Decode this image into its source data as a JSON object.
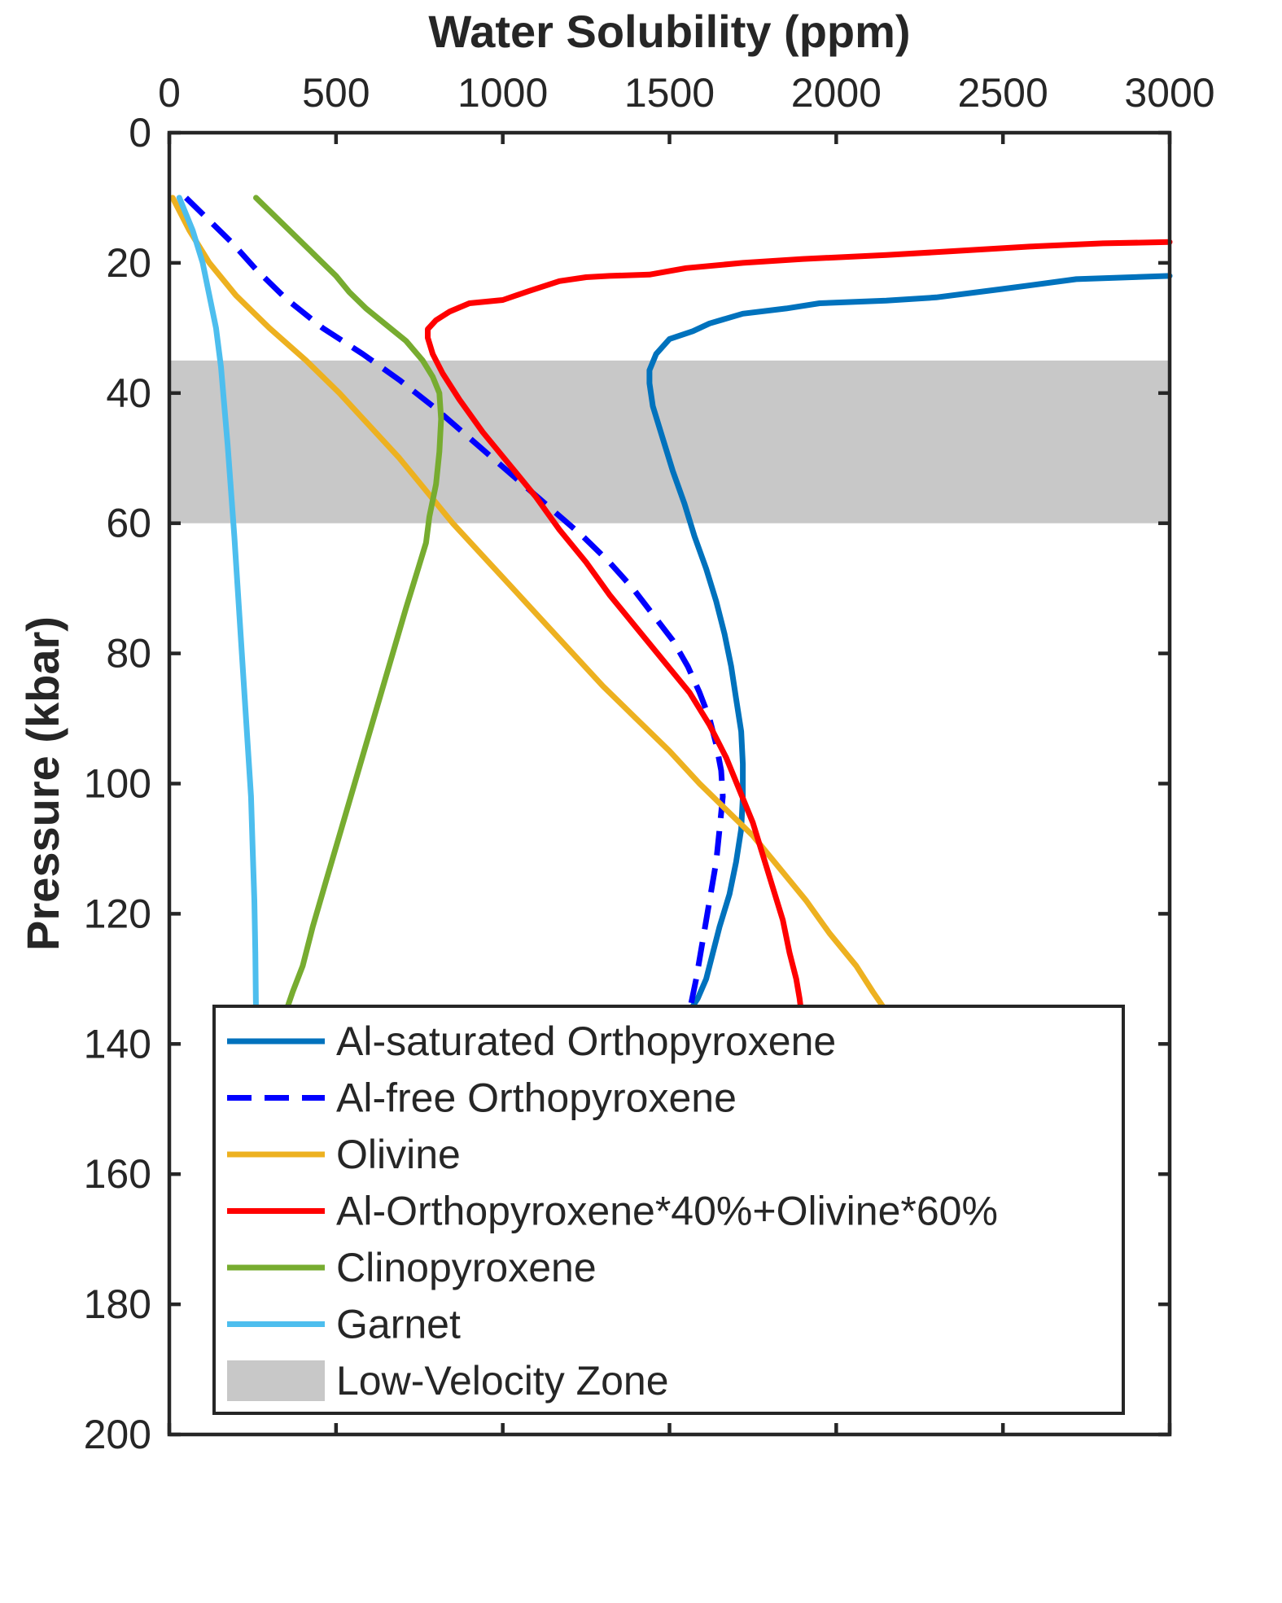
{
  "chart_data": {
    "type": "line",
    "xlabel": "Water Solubility (ppm)",
    "ylabel": "Pressure (kbar)",
    "xlim": [
      0,
      3000
    ],
    "ylim": [
      0,
      200
    ],
    "x_axis_position": "top",
    "y_axis_reversed": true,
    "x_ticks": [
      0,
      500,
      1000,
      1500,
      2000,
      2500,
      3000
    ],
    "y_ticks": [
      0,
      20,
      40,
      60,
      80,
      100,
      120,
      140,
      160,
      180,
      200
    ],
    "grid": false,
    "legend_position": "bottom-left",
    "band": {
      "name": "Low-Velocity Zone",
      "ymin": 35,
      "ymax": 60,
      "color": "#c8c8c8"
    },
    "series": [
      {
        "name": "Al-saturated Orthopyroxene",
        "color": "#0072bd",
        "dash": "solid",
        "points": [
          [
            3000,
            22
          ],
          [
            2720,
            22.5
          ],
          [
            2500,
            24
          ],
          [
            2300,
            25.3
          ],
          [
            2150,
            25.8
          ],
          [
            1950,
            26.2
          ],
          [
            1850,
            27
          ],
          [
            1720,
            27.8
          ],
          [
            1620,
            29.3
          ],
          [
            1570,
            30.5
          ],
          [
            1500,
            31.7
          ],
          [
            1460,
            34
          ],
          [
            1440,
            36.5
          ],
          [
            1440,
            38.5
          ],
          [
            1450,
            42
          ],
          [
            1480,
            47
          ],
          [
            1510,
            52
          ],
          [
            1545,
            57
          ],
          [
            1575,
            62
          ],
          [
            1610,
            67
          ],
          [
            1640,
            72
          ],
          [
            1665,
            77
          ],
          [
            1685,
            82
          ],
          [
            1700,
            87
          ],
          [
            1715,
            92
          ],
          [
            1720,
            97
          ],
          [
            1720,
            102
          ],
          [
            1715,
            107
          ],
          [
            1700,
            112
          ],
          [
            1680,
            117
          ],
          [
            1650,
            122
          ],
          [
            1630,
            126
          ],
          [
            1610,
            130
          ],
          [
            1585,
            133
          ],
          [
            1560,
            135
          ]
        ]
      },
      {
        "name": "Al-free Orthopyroxene",
        "color": "#0000ff",
        "dash": "dashed",
        "points": [
          [
            50,
            10
          ],
          [
            110,
            13
          ],
          [
            190,
            17
          ],
          [
            260,
            21
          ],
          [
            350,
            25.5
          ],
          [
            460,
            30
          ],
          [
            580,
            34
          ],
          [
            690,
            38
          ],
          [
            790,
            42
          ],
          [
            880,
            46
          ],
          [
            970,
            50
          ],
          [
            1060,
            54
          ],
          [
            1150,
            58
          ],
          [
            1240,
            62
          ],
          [
            1320,
            66
          ],
          [
            1390,
            70
          ],
          [
            1450,
            74
          ],
          [
            1510,
            78
          ],
          [
            1555,
            82
          ],
          [
            1590,
            86
          ],
          [
            1620,
            90
          ],
          [
            1640,
            94
          ],
          [
            1655,
            98
          ],
          [
            1660,
            102
          ],
          [
            1650,
            107
          ],
          [
            1640,
            112
          ],
          [
            1620,
            118
          ],
          [
            1600,
            124
          ],
          [
            1580,
            130
          ],
          [
            1560,
            135
          ]
        ]
      },
      {
        "name": "Olivine",
        "color": "#edb120",
        "dash": "solid",
        "points": [
          [
            10,
            10
          ],
          [
            60,
            15
          ],
          [
            120,
            20
          ],
          [
            200,
            25
          ],
          [
            300,
            30
          ],
          [
            410,
            35
          ],
          [
            510,
            40
          ],
          [
            600,
            45
          ],
          [
            690,
            50
          ],
          [
            770,
            55
          ],
          [
            850,
            60
          ],
          [
            940,
            65
          ],
          [
            1030,
            70
          ],
          [
            1120,
            75
          ],
          [
            1210,
            80
          ],
          [
            1300,
            85
          ],
          [
            1400,
            90
          ],
          [
            1500,
            95
          ],
          [
            1590,
            100
          ],
          [
            1670,
            104
          ],
          [
            1750,
            108
          ],
          [
            1830,
            113
          ],
          [
            1910,
            118
          ],
          [
            1980,
            123
          ],
          [
            2060,
            128
          ],
          [
            2110,
            132
          ],
          [
            2150,
            135
          ]
        ]
      },
      {
        "name": "Al-Orthopyroxene*40%+Olivine*60%",
        "color": "#ff0000",
        "dash": "solid",
        "points": [
          [
            3000,
            16.8
          ],
          [
            2800,
            17
          ],
          [
            2580,
            17.5
          ],
          [
            2350,
            18.2
          ],
          [
            2150,
            18.8
          ],
          [
            1900,
            19.4
          ],
          [
            1720,
            20
          ],
          [
            1550,
            20.8
          ],
          [
            1440,
            21.8
          ],
          [
            1320,
            22
          ],
          [
            1250,
            22.2
          ],
          [
            1170,
            22.8
          ],
          [
            1080,
            24.3
          ],
          [
            1000,
            25.7
          ],
          [
            900,
            26.2
          ],
          [
            840,
            27.5
          ],
          [
            800,
            28.8
          ],
          [
            775,
            30.2
          ],
          [
            775,
            31.5
          ],
          [
            790,
            34
          ],
          [
            820,
            37
          ],
          [
            870,
            41
          ],
          [
            940,
            46
          ],
          [
            1020,
            51
          ],
          [
            1100,
            56
          ],
          [
            1170,
            61
          ],
          [
            1250,
            66
          ],
          [
            1320,
            71
          ],
          [
            1400,
            76
          ],
          [
            1480,
            81
          ],
          [
            1560,
            86
          ],
          [
            1620,
            91
          ],
          [
            1670,
            96
          ],
          [
            1710,
            101
          ],
          [
            1750,
            106
          ],
          [
            1780,
            111
          ],
          [
            1810,
            116
          ],
          [
            1840,
            121
          ],
          [
            1860,
            126
          ],
          [
            1880,
            130
          ],
          [
            1890,
            133
          ],
          [
            1895,
            135
          ]
        ]
      },
      {
        "name": "Clinopyroxene",
        "color": "#77ac30",
        "dash": "solid",
        "points": [
          [
            260,
            10
          ],
          [
            300,
            12
          ],
          [
            340,
            14
          ],
          [
            380,
            16
          ],
          [
            420,
            18
          ],
          [
            460,
            20
          ],
          [
            500,
            22
          ],
          [
            540,
            24.5
          ],
          [
            590,
            27
          ],
          [
            650,
            29.5
          ],
          [
            710,
            32
          ],
          [
            760,
            35
          ],
          [
            790,
            37.5
          ],
          [
            810,
            40
          ],
          [
            815,
            44
          ],
          [
            810,
            49
          ],
          [
            800,
            54
          ],
          [
            780,
            59
          ],
          [
            770,
            63
          ],
          [
            740,
            68
          ],
          [
            710,
            73
          ],
          [
            670,
            80
          ],
          [
            630,
            87
          ],
          [
            590,
            94
          ],
          [
            550,
            101
          ],
          [
            510,
            108
          ],
          [
            470,
            115
          ],
          [
            430,
            122
          ],
          [
            400,
            128
          ],
          [
            370,
            132
          ],
          [
            350,
            135
          ]
        ]
      },
      {
        "name": "Garnet",
        "color": "#4dbeee",
        "dash": "solid",
        "points": [
          [
            30,
            10
          ],
          [
            70,
            15
          ],
          [
            100,
            20
          ],
          [
            120,
            25
          ],
          [
            140,
            30
          ],
          [
            155,
            36
          ],
          [
            165,
            42
          ],
          [
            175,
            48
          ],
          [
            185,
            55
          ],
          [
            195,
            62
          ],
          [
            205,
            70
          ],
          [
            215,
            78
          ],
          [
            225,
            86
          ],
          [
            235,
            94
          ],
          [
            245,
            102
          ],
          [
            250,
            110
          ],
          [
            255,
            118
          ],
          [
            258,
            126
          ],
          [
            260,
            135
          ]
        ]
      }
    ]
  }
}
